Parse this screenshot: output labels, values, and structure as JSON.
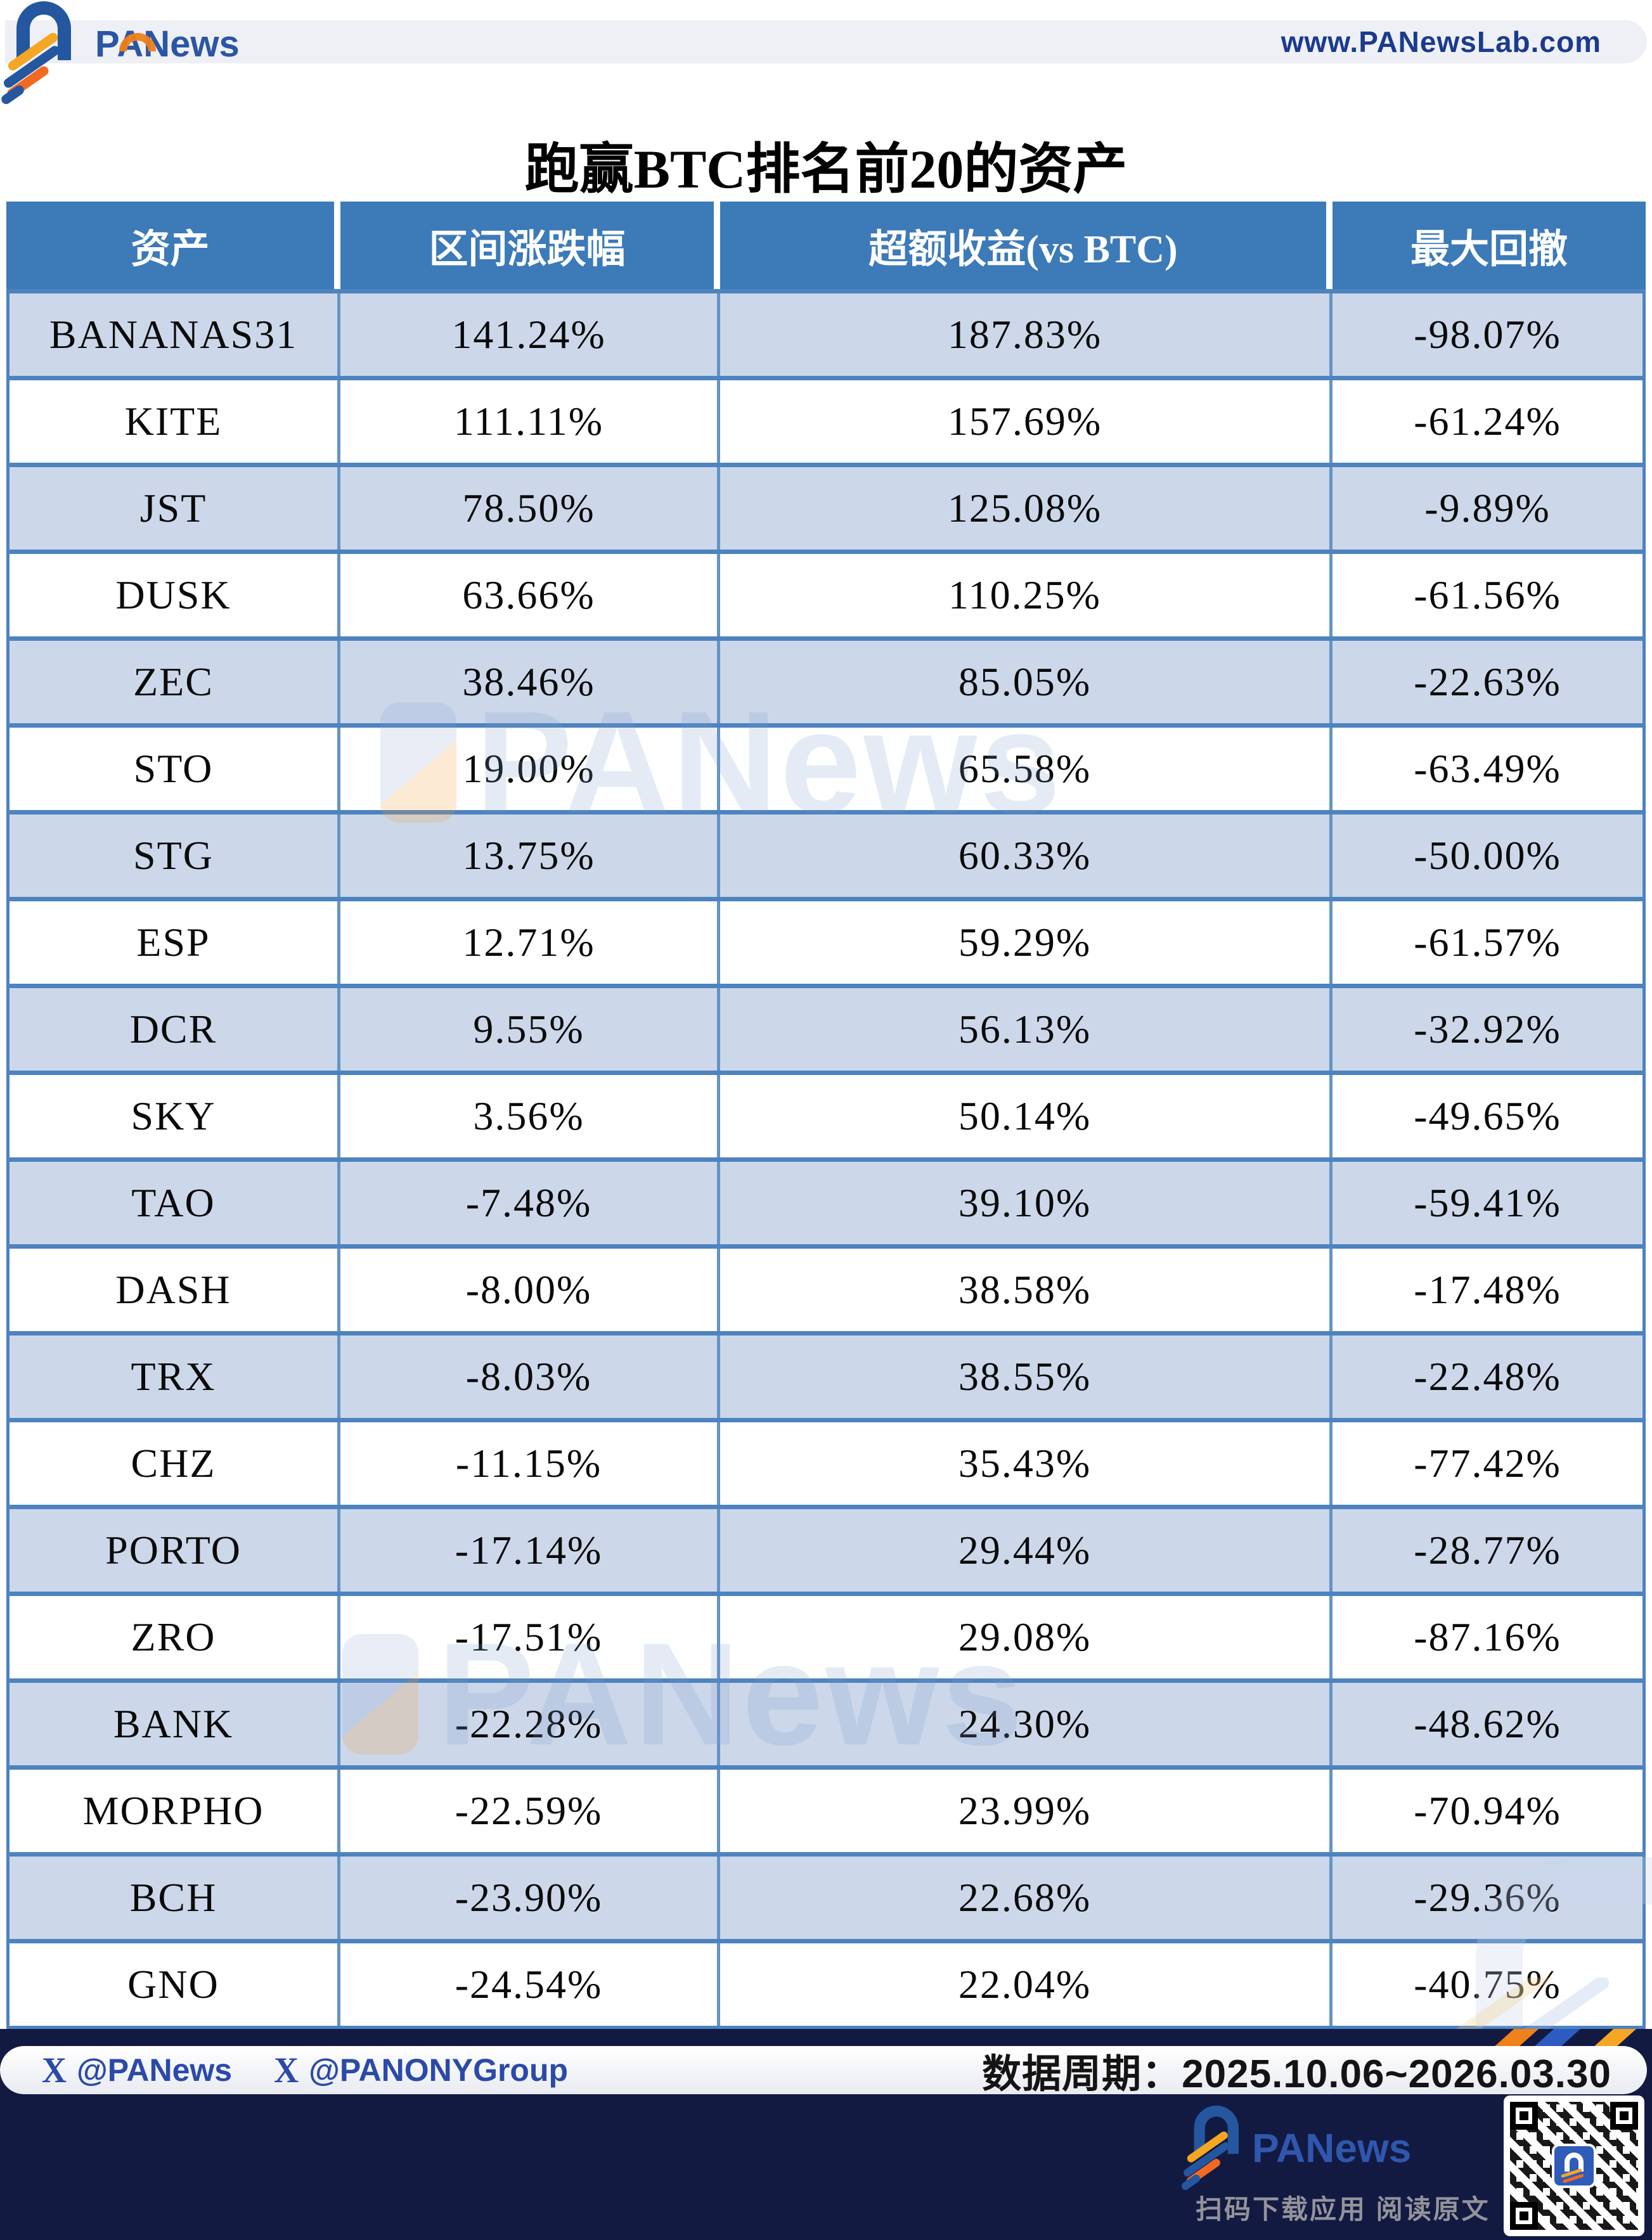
{
  "brand": {
    "name": "PANews",
    "website": "www.PANewsLab.com",
    "watermark": "PANews",
    "handle_1": "@PANews",
    "handle_2": "@PANONYGroup",
    "scan_caption": "扫码下载应用  阅读原文"
  },
  "title": "跑赢BTC排名前20的资产",
  "period_label": "数据周期：2025.10.06~2026.03.30",
  "chart_data": {
    "type": "table",
    "title": "跑赢BTC排名前20的资产",
    "columns": [
      "资产",
      "区间涨跌幅",
      "超额收益(vs BTC)",
      "最大回撤"
    ],
    "rows": [
      [
        "BANANAS31",
        "141.24%",
        "187.83%",
        "-98.07%"
      ],
      [
        "KITE",
        "111.11%",
        "157.69%",
        "-61.24%"
      ],
      [
        "JST",
        "78.50%",
        "125.08%",
        "-9.89%"
      ],
      [
        "DUSK",
        "63.66%",
        "110.25%",
        "-61.56%"
      ],
      [
        "ZEC",
        "38.46%",
        "85.05%",
        "-22.63%"
      ],
      [
        "STO",
        "19.00%",
        "65.58%",
        "-63.49%"
      ],
      [
        "STG",
        "13.75%",
        "60.33%",
        "-50.00%"
      ],
      [
        "ESP",
        "12.71%",
        "59.29%",
        "-61.57%"
      ],
      [
        "DCR",
        "9.55%",
        "56.13%",
        "-32.92%"
      ],
      [
        "SKY",
        "3.56%",
        "50.14%",
        "-49.65%"
      ],
      [
        "TAO",
        "-7.48%",
        "39.10%",
        "-59.41%"
      ],
      [
        "DASH",
        "-8.00%",
        "38.58%",
        "-17.48%"
      ],
      [
        "TRX",
        "-8.03%",
        "38.55%",
        "-22.48%"
      ],
      [
        "CHZ",
        "-11.15%",
        "35.43%",
        "-77.42%"
      ],
      [
        "PORTO",
        "-17.14%",
        "29.44%",
        "-28.77%"
      ],
      [
        "ZRO",
        "-17.51%",
        "29.08%",
        "-87.16%"
      ],
      [
        "BANK",
        "-22.28%",
        "24.30%",
        "-48.62%"
      ],
      [
        "MORPHO",
        "-22.59%",
        "23.99%",
        "-70.94%"
      ],
      [
        "BCH",
        "-23.90%",
        "22.68%",
        "-29.36%"
      ],
      [
        "GNO",
        "-24.54%",
        "22.04%",
        "-40.75%"
      ]
    ],
    "period": "2025.10.06~2026.03.30",
    "row_stripe_colors": [
      "#ccd8ea",
      "#ffffff"
    ],
    "header_color": "#3c7ab8"
  },
  "colors": {
    "header_blue": "#3c7ab8",
    "stripe_blue": "#ccd8ea",
    "grid_blue": "#4d83bf",
    "brand_blue": "#2b55a5",
    "brand_orange": "#f08019",
    "navy_footer": "#131a42",
    "topbar_gray": "#eef0f5",
    "url_blue": "#1b3a8f"
  }
}
